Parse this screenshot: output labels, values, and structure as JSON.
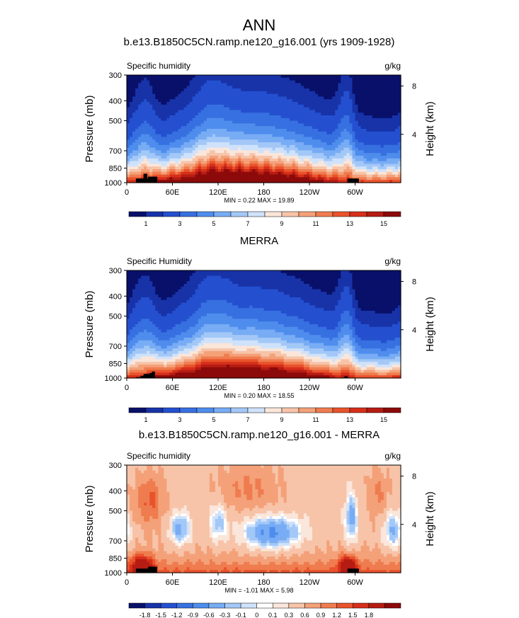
{
  "page_title": "ANN",
  "palettes": {
    "absolute": [
      "#08106a",
      "#1833a8",
      "#2450d0",
      "#3770e0",
      "#4f8ded",
      "#78acf4",
      "#a3c8f7",
      "#cfe2fb",
      "#fae6da",
      "#f7c4a9",
      "#f4a179",
      "#ef7c4f",
      "#e9532c",
      "#d62f1a",
      "#b51c13",
      "#8c0a0a"
    ],
    "difference": [
      "#08106a",
      "#1833a8",
      "#2450d0",
      "#3770e0",
      "#4f8ded",
      "#78acf4",
      "#a3c8f7",
      "#cfe2fb",
      "#ffffff",
      "#fae6da",
      "#f7c4a9",
      "#f4a179",
      "#ef7c4f",
      "#e9532c",
      "#d62f1a",
      "#b51c13",
      "#8c0a0a"
    ],
    "land": "#000000"
  },
  "chart_data": [
    {
      "type": "heatmap",
      "title": "b.e13.B1850C5CN.ramp.ne120_g16.001 (yrs 1909-1928)",
      "left_label": "Specific humidity",
      "right_label": "g/kg",
      "ylabel": "Pressure (mb)",
      "y2label": "Height (km)",
      "x_ticks": [
        "0",
        "60E",
        "120E",
        "180",
        "120W",
        "60W"
      ],
      "y_ticks": [
        "300",
        "400",
        "500",
        "700",
        "850",
        "1000"
      ],
      "y2_ticks": [
        "8",
        "4"
      ],
      "minmax": "MIN =   0.22  MAX =  19.89",
      "min": 0.22,
      "max": 19.89,
      "xlim": [
        0,
        360
      ],
      "ylim": [
        1000,
        300
      ],
      "levels": [
        0.5,
        1,
        2,
        3,
        4,
        5,
        6,
        7,
        8,
        9,
        10,
        11,
        12,
        13,
        14,
        15
      ],
      "colorbar_labels": [
        "1",
        "3",
        "5",
        "7",
        "9",
        "11",
        "13",
        "15"
      ]
    },
    {
      "type": "heatmap",
      "title": "MERRA",
      "left_label": "Specific Humidity",
      "right_label": "g/kg",
      "ylabel": "Pressure (mb)",
      "y2label": "Height (km)",
      "x_ticks": [
        "0",
        "60E",
        "120E",
        "180",
        "120W",
        "60W"
      ],
      "y_ticks": [
        "300",
        "400",
        "500",
        "700",
        "850",
        "1000"
      ],
      "y2_ticks": [
        "8",
        "4"
      ],
      "minmax": "MIN =   0.20  MAX =  18.55",
      "min": 0.2,
      "max": 18.55,
      "xlim": [
        0,
        360
      ],
      "ylim": [
        1000,
        300
      ],
      "levels": [
        0.5,
        1,
        2,
        3,
        4,
        5,
        6,
        7,
        8,
        9,
        10,
        11,
        12,
        13,
        14,
        15
      ],
      "colorbar_labels": [
        "1",
        "3",
        "5",
        "7",
        "9",
        "11",
        "13",
        "15"
      ]
    },
    {
      "type": "heatmap",
      "title": "b.e13.B1850C5CN.ramp.ne120_g16.001 - MERRA",
      "left_label": "Specific humidity",
      "right_label": "g/kg",
      "ylabel": "Pressure (mb)",
      "y2label": "Height (km)",
      "x_ticks": [
        "0",
        "60E",
        "120E",
        "180",
        "120W",
        "60W"
      ],
      "y_ticks": [
        "300",
        "400",
        "500",
        "700",
        "850",
        "1000"
      ],
      "y2_ticks": [
        "8",
        "4"
      ],
      "minmax": "MIN =  -1.01  MAX =   5.98",
      "min": -1.01,
      "max": 5.98,
      "xlim": [
        0,
        360
      ],
      "ylim": [
        1000,
        300
      ],
      "levels": [
        -1.8,
        -1.5,
        -1.2,
        -0.9,
        -0.6,
        -0.3,
        -0.1,
        0,
        0.1,
        0.3,
        0.6,
        0.9,
        1.2,
        1.5,
        1.8
      ],
      "colorbar_labels": [
        "-1.8",
        "-1.5",
        "-1.2",
        "-0.9",
        "-0.6",
        "-0.3",
        "-0.1",
        "0",
        "0.1",
        "0.3",
        "0.6",
        "0.9",
        "1.2",
        "1.5",
        "1.8"
      ]
    }
  ]
}
